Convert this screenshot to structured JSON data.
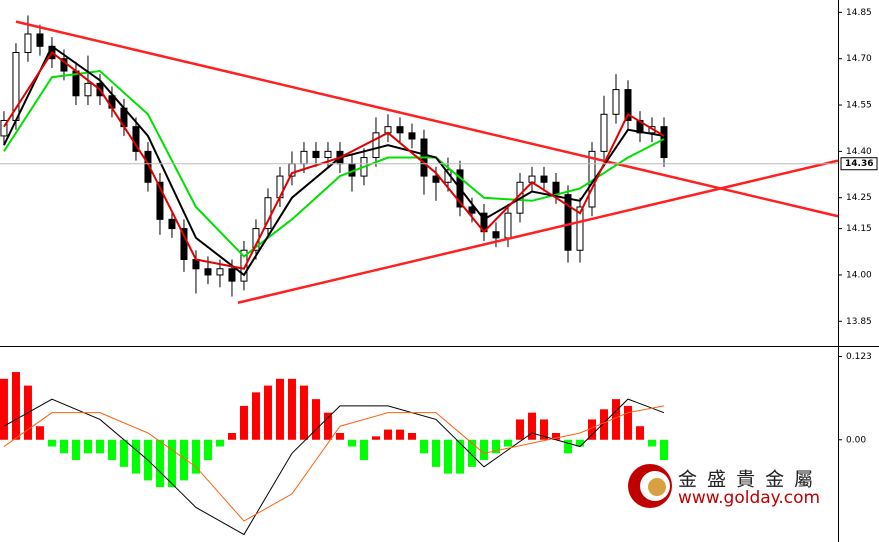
{
  "chart_data": [
    {
      "type": "candlestick",
      "xlim": [
        -0.33,
        69.5
      ],
      "ylim": [
        13.77,
        14.89
      ],
      "yticks": [
        14.85,
        {
          "value": 14.7,
          "label": "14.70"
        },
        14.55,
        {
          "value": 14.4,
          "label": "14.40"
        },
        14.25,
        14.15,
        {
          "value": 14.0,
          "label": "14.00"
        },
        13.85
      ],
      "up_color": "#ffffff",
      "down_color": "#000000",
      "open": [
        14.45,
        14.5,
        14.72,
        14.78,
        14.74,
        14.7,
        14.66,
        14.58,
        14.62,
        14.58,
        14.54,
        14.48,
        14.4,
        14.3,
        14.18,
        14.15,
        14.05,
        14.02,
        14.0,
        14.02,
        13.98,
        14.08,
        14.15,
        14.25,
        14.32,
        14.36,
        14.4,
        14.38,
        14.4,
        14.36,
        14.32,
        14.38,
        14.46,
        14.48,
        14.46,
        14.44,
        14.32,
        14.3,
        14.34,
        14.22,
        14.2,
        14.14,
        14.12,
        14.2,
        14.3,
        14.32,
        14.3,
        14.26,
        14.08,
        14.22,
        14.4,
        14.52,
        14.6,
        14.5,
        14.46,
        14.48
      ],
      "high": [
        14.53,
        14.75,
        14.84,
        14.81,
        14.77,
        14.73,
        14.69,
        14.71,
        14.65,
        14.61,
        14.57,
        14.51,
        14.43,
        14.33,
        14.21,
        14.18,
        14.08,
        14.06,
        14.05,
        14.05,
        14.11,
        14.18,
        14.28,
        14.35,
        14.4,
        14.43,
        14.43,
        14.43,
        14.43,
        14.39,
        14.41,
        14.51,
        14.52,
        14.51,
        14.49,
        14.47,
        14.35,
        14.38,
        14.37,
        14.25,
        14.23,
        14.17,
        14.23,
        14.33,
        14.35,
        14.35,
        14.33,
        14.29,
        14.25,
        14.43,
        14.58,
        14.65,
        14.63,
        14.53,
        14.51,
        14.51
      ],
      "low": [
        14.42,
        14.47,
        14.69,
        14.71,
        14.67,
        14.63,
        14.55,
        14.55,
        14.55,
        14.51,
        14.45,
        14.37,
        14.27,
        14.13,
        14.12,
        14.01,
        13.94,
        13.97,
        13.96,
        13.93,
        13.95,
        14.05,
        14.12,
        14.22,
        14.29,
        14.33,
        14.35,
        14.35,
        14.33,
        14.27,
        14.29,
        14.35,
        14.43,
        14.43,
        14.41,
        14.26,
        14.24,
        14.27,
        14.19,
        14.17,
        14.11,
        14.09,
        14.09,
        14.17,
        14.27,
        14.27,
        14.23,
        14.04,
        14.04,
        14.19,
        14.37,
        14.49,
        14.47,
        14.43,
        14.43,
        14.35
      ],
      "close": [
        14.5,
        14.72,
        14.78,
        14.74,
        14.7,
        14.66,
        14.58,
        14.62,
        14.58,
        14.54,
        14.48,
        14.4,
        14.3,
        14.18,
        14.15,
        14.05,
        14.02,
        14.0,
        14.02,
        13.98,
        14.08,
        14.15,
        14.25,
        14.32,
        14.36,
        14.4,
        14.38,
        14.4,
        14.36,
        14.32,
        14.38,
        14.46,
        14.48,
        14.46,
        14.44,
        14.32,
        14.3,
        14.34,
        14.22,
        14.2,
        14.14,
        14.12,
        14.2,
        14.3,
        14.32,
        14.3,
        14.26,
        14.08,
        14.22,
        14.4,
        14.52,
        14.6,
        14.5,
        14.46,
        14.48,
        14.38
      ],
      "series": [
        {
          "color": "#00e000",
          "x": [
            0,
            4,
            8,
            12,
            16,
            20,
            24,
            28,
            32,
            36,
            40,
            44,
            48,
            52,
            55
          ],
          "values": [
            14.4,
            14.64,
            14.66,
            14.52,
            14.22,
            14.06,
            14.18,
            14.32,
            14.38,
            14.38,
            14.25,
            14.24,
            14.28,
            14.38,
            14.44
          ]
        },
        {
          "color": "#000000",
          "x": [
            0,
            4,
            8,
            12,
            16,
            20,
            24,
            28,
            32,
            36,
            40,
            44,
            48,
            52,
            55
          ],
          "values": [
            14.42,
            14.74,
            14.63,
            14.45,
            14.12,
            14.0,
            14.25,
            14.38,
            14.42,
            14.38,
            14.18,
            14.27,
            14.24,
            14.47,
            14.45
          ]
        },
        {
          "color": "#e00000",
          "x": [
            0,
            4,
            8,
            12,
            16,
            20,
            24,
            28,
            32,
            36,
            40,
            44,
            48,
            52,
            55
          ],
          "values": [
            14.48,
            14.72,
            14.6,
            14.36,
            14.05,
            14.02,
            14.33,
            14.38,
            14.46,
            14.33,
            14.14,
            14.3,
            14.2,
            14.52,
            14.45
          ]
        }
      ],
      "trendlines": [
        {
          "color": "#ff2020",
          "x": [
            1,
            69.5
          ],
          "values": [
            14.82,
            14.19
          ]
        },
        {
          "color": "#ff2020",
          "x": [
            19.5,
            69.5
          ],
          "values": [
            13.91,
            14.37
          ]
        }
      ],
      "last_price": 14.36
    },
    {
      "type": "macd",
      "xlim": [
        -0.33,
        69.5
      ],
      "ylim": [
        -0.151,
        0.137
      ],
      "yticks": [
        0.123,
        {
          "value": 0,
          "label": "0.00"
        }
      ],
      "up_color": "#ff0000",
      "down_color": "#00ff00",
      "values": [
        0.09,
        0.1,
        0.08,
        0.02,
        -0.01,
        -0.02,
        -0.03,
        -0.02,
        -0.02,
        -0.03,
        -0.04,
        -0.05,
        -0.06,
        -0.07,
        -0.07,
        -0.06,
        -0.05,
        -0.03,
        -0.01,
        0.01,
        0.05,
        0.07,
        0.08,
        0.09,
        0.09,
        0.08,
        0.06,
        0.04,
        0.01,
        -0.01,
        -0.03,
        0.005,
        0.015,
        0.015,
        0.01,
        -0.02,
        -0.04,
        -0.05,
        -0.05,
        -0.04,
        -0.03,
        -0.02,
        -0.01,
        0.03,
        0.04,
        0.03,
        0.01,
        -0.02,
        -0.01,
        0.03,
        0.045,
        0.06,
        0.05,
        0.02,
        -0.01,
        -0.03
      ],
      "series": [
        {
          "color": "#000000",
          "x": [
            0,
            4,
            8,
            12,
            16,
            20,
            24,
            28,
            32,
            36,
            40,
            44,
            48,
            52,
            55
          ],
          "values": [
            0.02,
            0.06,
            0.03,
            -0.03,
            -0.1,
            -0.14,
            -0.02,
            0.05,
            0.05,
            0.03,
            -0.04,
            0.01,
            -0.01,
            0.06,
            0.04
          ]
        },
        {
          "color": "#ff6010",
          "x": [
            0,
            4,
            8,
            12,
            16,
            20,
            24,
            28,
            32,
            36,
            40,
            44,
            48,
            52,
            55
          ],
          "values": [
            -0.01,
            0.04,
            0.04,
            0.01,
            -0.04,
            -0.12,
            -0.08,
            0.02,
            0.04,
            0.04,
            -0.02,
            -0.005,
            0.01,
            0.04,
            0.05
          ]
        }
      ]
    }
  ],
  "watermark": {
    "name": "金 盛 貴 金 屬",
    "url": "www.golday.com"
  }
}
